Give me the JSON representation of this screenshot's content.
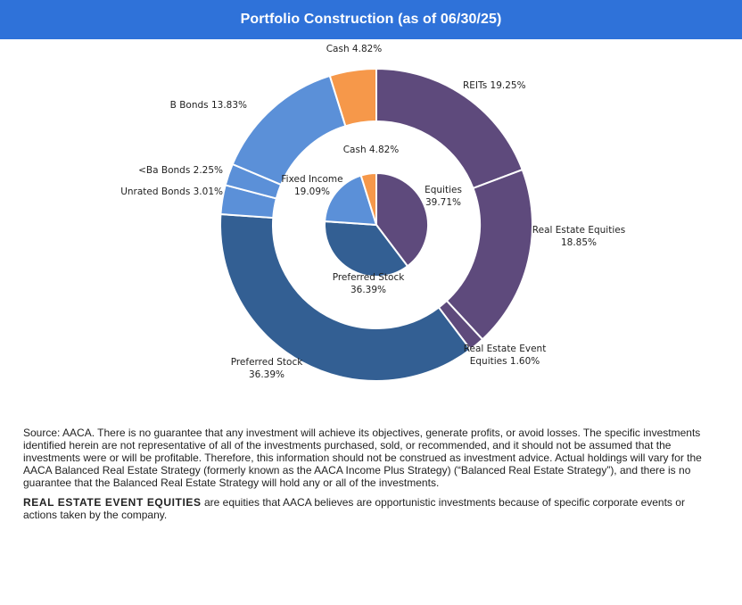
{
  "header": {
    "title": "Portfolio Construction (as of 06/30/25)"
  },
  "chart_data": {
    "type": "pie",
    "subtype": "nested-donut",
    "rings": [
      {
        "name": "inner",
        "slices": [
          {
            "label": "Equities",
            "pct_label": "39.71%",
            "value": 39.71,
            "color": "#5e4a7c"
          },
          {
            "label": "Preferred Stock",
            "pct_label": "36.39%",
            "value": 36.39,
            "color": "#335f93"
          },
          {
            "label": "Fixed Income",
            "pct_label": "19.09%",
            "value": 19.09,
            "color": "#5b90d8"
          },
          {
            "label": "Cash",
            "pct_label": "4.82%",
            "value": 4.82,
            "color": "#f6984a"
          }
        ]
      },
      {
        "name": "outer",
        "slices": [
          {
            "label": "REITs",
            "pct_label": "19.25%",
            "value": 19.25,
            "color": "#5e4a7c"
          },
          {
            "label": "Real Estate Equities",
            "pct_label": "18.85%",
            "value": 18.85,
            "color": "#5e4a7c"
          },
          {
            "label": "Real Estate Event Equities",
            "pct_label": "1.60%",
            "value": 1.6,
            "color": "#5e4a7c"
          },
          {
            "label": "Preferred Stock",
            "pct_label": "36.39%",
            "value": 36.39,
            "color": "#335f93"
          },
          {
            "label": "Unrated Bonds",
            "pct_label": "3.01%",
            "value": 3.01,
            "color": "#5b90d8"
          },
          {
            "label": "<Ba Bonds",
            "pct_label": "2.25%",
            "value": 2.25,
            "color": "#5b90d8"
          },
          {
            "label": "B Bonds",
            "pct_label": "13.83%",
            "value": 13.83,
            "color": "#5b90d8"
          },
          {
            "label": "Cash",
            "pct_label": "4.82%",
            "value": 4.82,
            "color": "#f6984a"
          }
        ]
      }
    ],
    "labels": {
      "inner": {
        "equities": [
          "Equities",
          "39.71%"
        ],
        "preferred": [
          "Preferred Stock",
          "36.39%"
        ],
        "fixed": [
          "Fixed Income",
          "19.09%"
        ],
        "cash": [
          "Cash 4.82%"
        ]
      },
      "outer": {
        "reits": [
          "REITs  19.25%"
        ],
        "re_equities": [
          "Real Estate Equities",
          "18.85%"
        ],
        "re_event": [
          "Real Estate Event",
          "Equities 1.60%"
        ],
        "preferred": [
          "Preferred Stock",
          "36.39%"
        ],
        "unrated": [
          "Unrated Bonds 3.01%"
        ],
        "ba": [
          "<Ba Bonds 2.25%"
        ],
        "b": [
          "B Bonds 13.83%"
        ],
        "cash": [
          "Cash 4.82%"
        ]
      }
    },
    "legend": "none"
  },
  "footnotes": {
    "source": "Source: AACA.  There is no guarantee that any investment will achieve its objectives, generate profits, or avoid losses. The specific investments identified herein are not representative of all of the investments purchased, sold, or recommended, and it should not be assumed that the investments were or will be profitable. Therefore, this information should not be construed as investment advice. Actual holdings will vary for the AACA  Balanced Real Estate Strategy (formerly known as the AACA  Income Plus Strategy) (“Balanced Real Estate Strategy”),  and there is no guarantee that the Balanced Real Estate Strategy will hold any or all of the investments.",
    "definition_term": "REAL ESTATE EVENT EQUITIES",
    "definition_text": " are equities that AACA  believes are opportunistic investments because of specific corporate events or actions taken by the company."
  }
}
